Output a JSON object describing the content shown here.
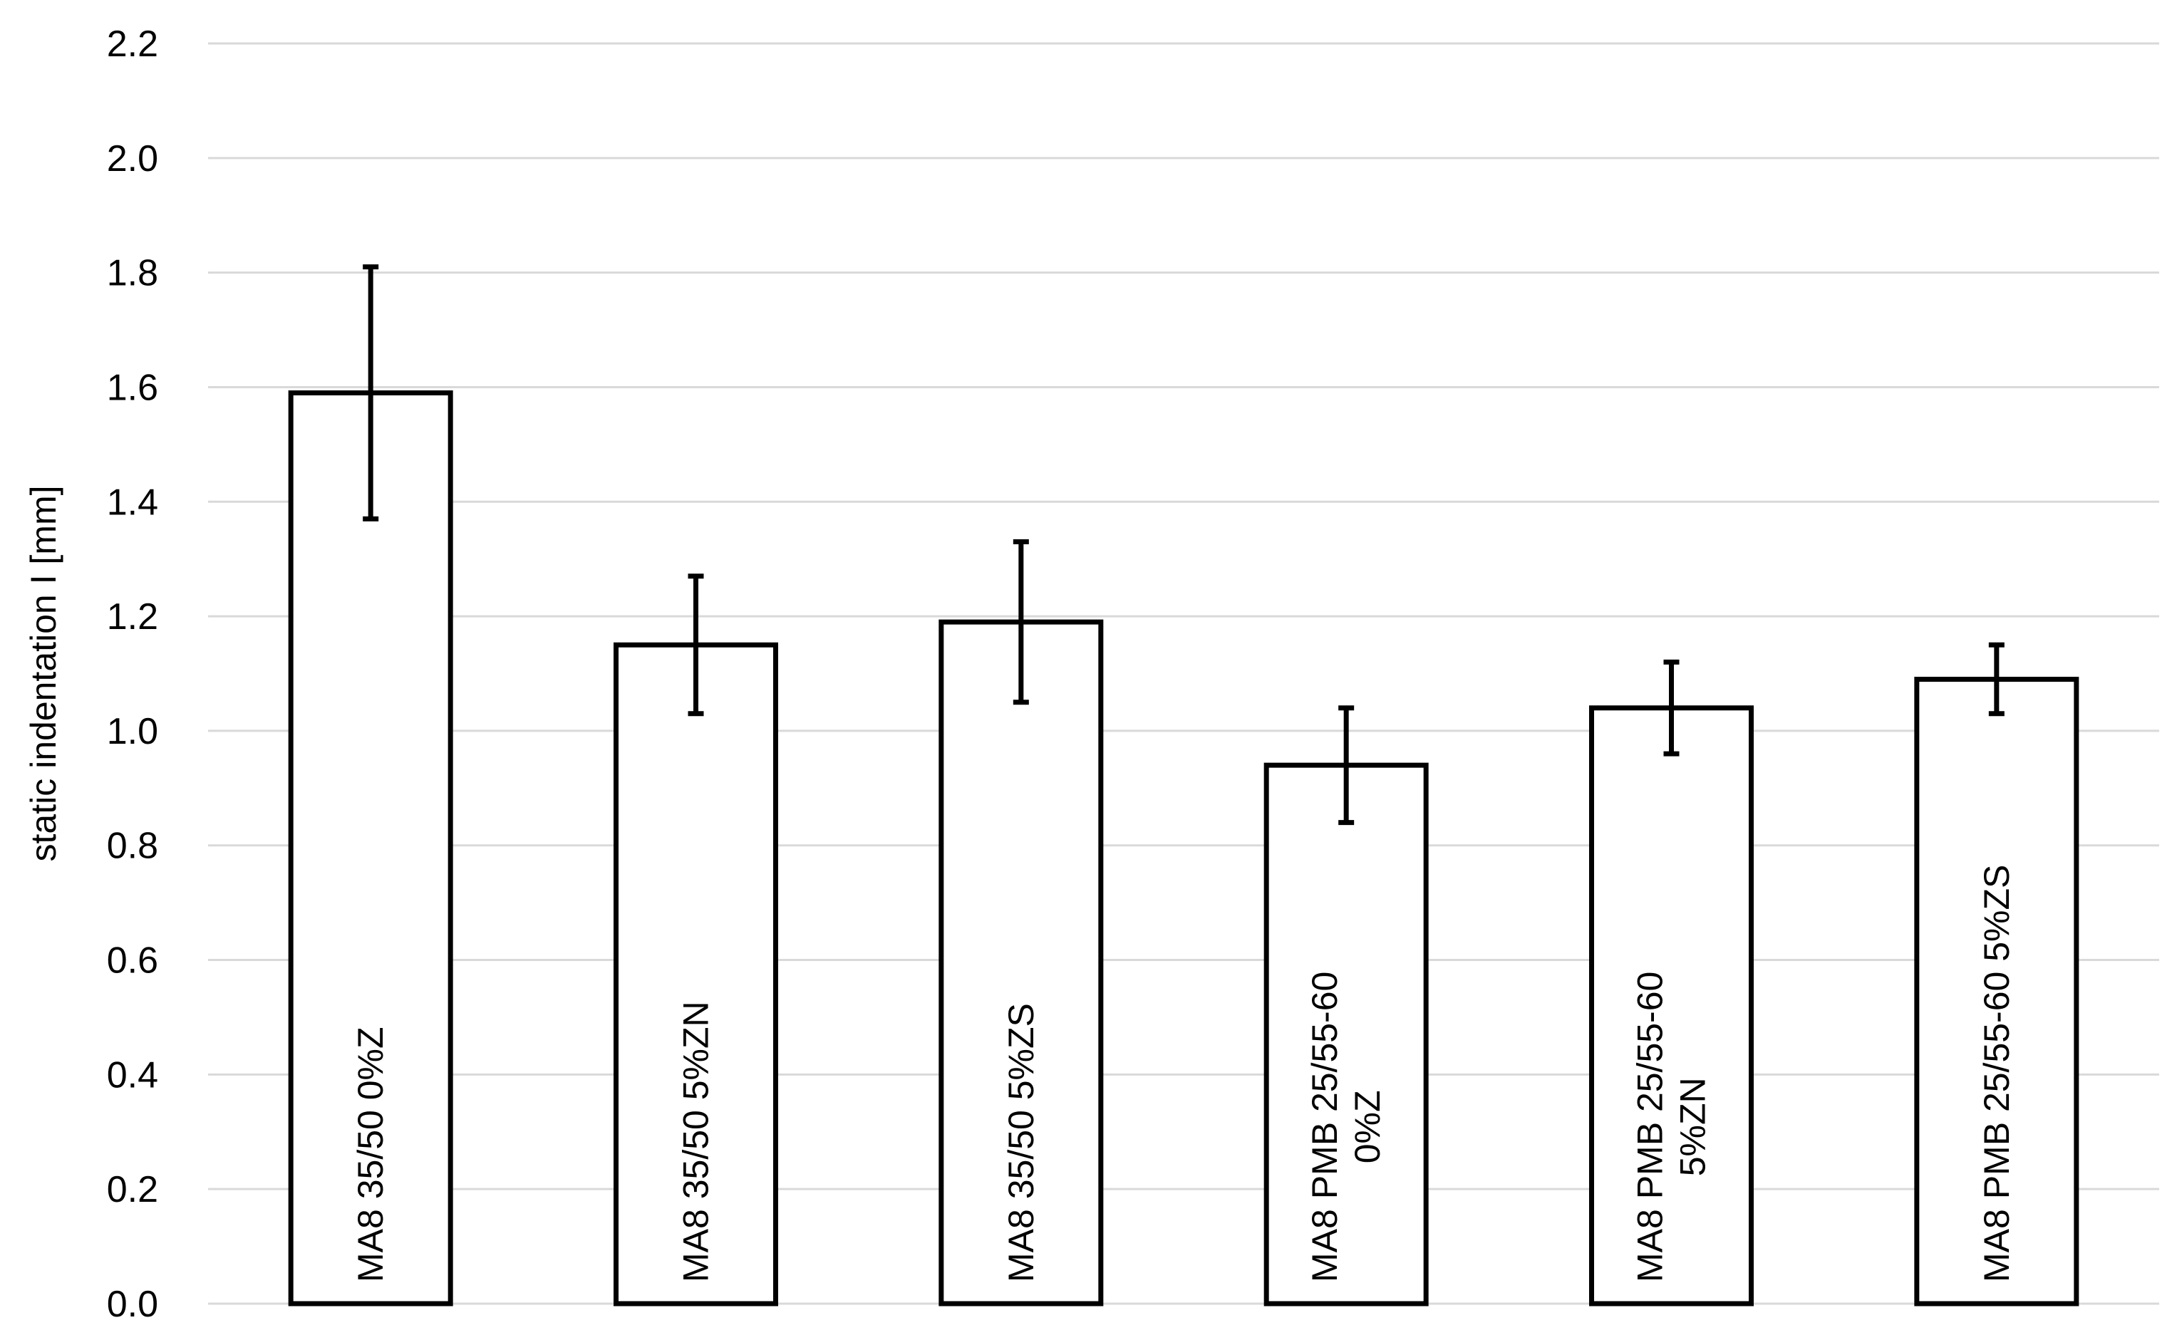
{
  "chart_data": {
    "type": "bar",
    "title": "",
    "xlabel": "",
    "ylabel": "static indentation I [mm]",
    "ylim": [
      0,
      2.2
    ],
    "y_ticks": [
      0.0,
      0.2,
      0.4,
      0.6,
      0.8,
      1.0,
      1.2,
      1.4,
      1.6,
      1.8,
      2.0,
      2.2
    ],
    "y_tick_labels": [
      "0.0",
      "0.2",
      "0.4",
      "0.6",
      "0.8",
      "1.0",
      "1.2",
      "1.4",
      "1.6",
      "1.8",
      "2.0",
      "2.2"
    ],
    "grid": true,
    "categories": [
      [
        "MA8 35/50 0%Z"
      ],
      [
        "MA8 35/50 5%ZN"
      ],
      [
        "MA8 35/50 5%ZS"
      ],
      [
        "MA8 PMB 25/55-60",
        "0%Z"
      ],
      [
        "MA8 PMB 25/55-60",
        "5%ZN"
      ],
      [
        "MA8 PMB 25/55-60 5%ZS"
      ]
    ],
    "values": [
      1.59,
      1.15,
      1.19,
      0.94,
      1.04,
      1.09
    ],
    "error_low": [
      1.37,
      1.03,
      1.05,
      0.84,
      0.96,
      1.03
    ],
    "error_high": [
      1.81,
      1.27,
      1.33,
      1.04,
      1.12,
      1.15
    ],
    "colors": {
      "bar_fill": "#ffffff",
      "bar_stroke": "#000000",
      "grid": "#d9d9d9",
      "error_bar": "#000000"
    }
  }
}
